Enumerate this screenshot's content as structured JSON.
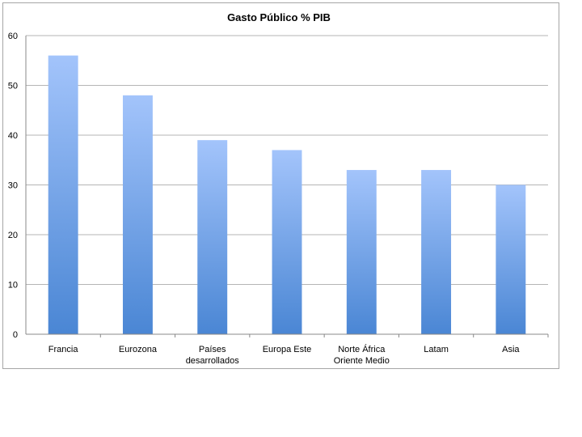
{
  "chart_data": {
    "type": "bar",
    "title": "Gasto Público % PIB",
    "categories": [
      [
        "Francia"
      ],
      [
        "Eurozona"
      ],
      [
        "Países",
        "desarrollados"
      ],
      [
        "Europa Este"
      ],
      [
        "Norte África",
        "Oriente Medio"
      ],
      [
        "Latam"
      ],
      [
        "Asia"
      ]
    ],
    "values": [
      56,
      48,
      39,
      37,
      33,
      33,
      30
    ],
    "ylim": [
      0,
      60
    ],
    "yticks": [
      0,
      10,
      20,
      30,
      40,
      50,
      60
    ],
    "grid": true,
    "legend": "none",
    "colors": {
      "bar_top": "#a3c4fb",
      "bar_bottom": "#4a86d4",
      "grid": "#b5b5b5",
      "axis": "#888888"
    }
  }
}
